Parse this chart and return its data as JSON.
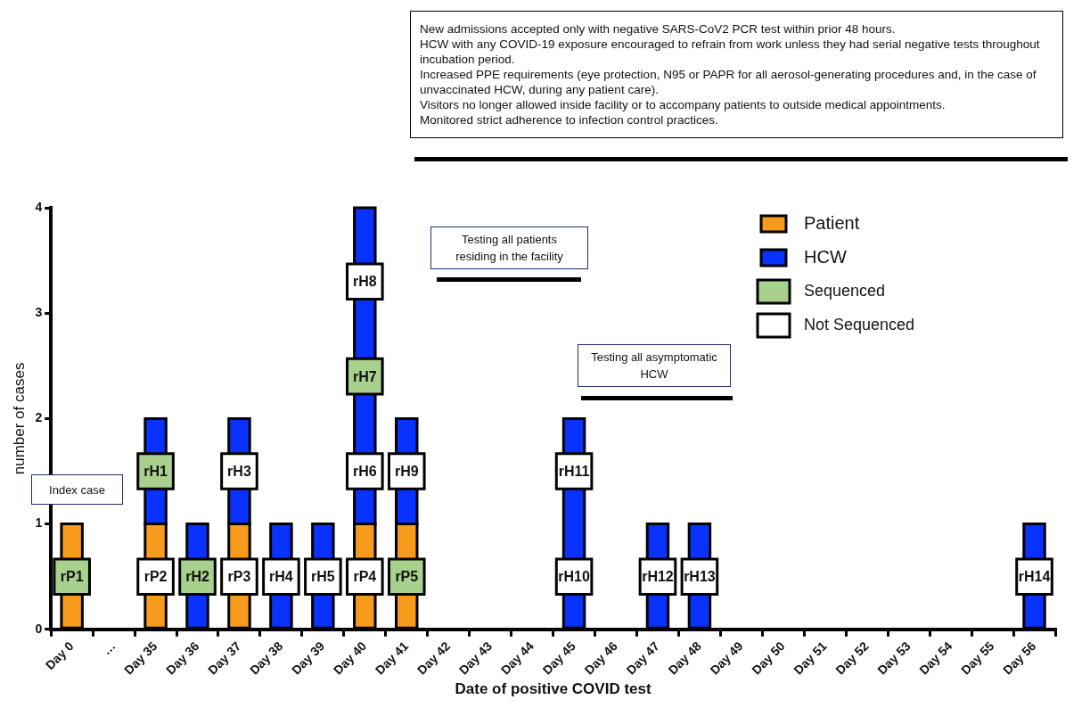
{
  "chart_data": {
    "type": "bar",
    "xlabel": "Date of positive COVID test",
    "ylabel": "number of cases",
    "categories": [
      "Day 0",
      "…",
      "Day 35",
      "Day 36",
      "Day 37",
      "Day 38",
      "Day 39",
      "Day 40",
      "Day 41",
      "Day 42",
      "Day 43",
      "Day 44",
      "Day 45",
      "Day 46",
      "Day 47",
      "Day 48",
      "Day 49",
      "Day 50",
      "Day 51",
      "Day 52",
      "Day 53",
      "Day 54",
      "Day 55",
      "Day 56"
    ],
    "stacked": true,
    "ylim": [
      0,
      4
    ],
    "yticks": [
      0,
      1,
      2,
      3,
      4
    ],
    "grid": false,
    "legend": "top right",
    "series": [
      {
        "name": "Patient",
        "color": "#f89a1c",
        "values": [
          1,
          0,
          1,
          0,
          1,
          0,
          0,
          1,
          1,
          0,
          0,
          0,
          0,
          0,
          0,
          0,
          0,
          0,
          0,
          0,
          0,
          0,
          0,
          0
        ]
      },
      {
        "name": "HCW",
        "color": "#0a32ff",
        "values": [
          0,
          0,
          1,
          1,
          1,
          1,
          1,
          3,
          1,
          0,
          0,
          0,
          2,
          0,
          1,
          1,
          0,
          0,
          0,
          0,
          0,
          0,
          0,
          1
        ]
      },
      {
        "name": "Sequenced",
        "type": "scatter",
        "marker": "square",
        "color": "#a9d18e",
        "x": [
          "Day 0",
          "Day 35",
          "Day 36",
          "Day 40",
          "Day 41"
        ],
        "values": [
          0.5,
          1.5,
          0.5,
          2.4,
          0.5
        ]
      },
      {
        "name": "Not Sequenced",
        "type": "scatter",
        "marker": "square",
        "color": "#ffffff",
        "x": [
          "Day 35",
          "Day 37",
          "Day 37",
          "Day 38",
          "Day 39",
          "Day 40",
          "Day 40",
          "Day 40",
          "Day 41",
          "Day 45",
          "Day 45",
          "Day 47",
          "Day 48",
          "Day 56"
        ],
        "values": [
          0.5,
          0.5,
          1.5,
          0.5,
          0.5,
          0.5,
          1.5,
          3.3,
          1.5,
          0.5,
          1.5,
          0.5,
          0.5,
          0.5
        ]
      }
    ],
    "annotations": [
      "New admissions accepted only with negative SARS-CoV2 PCR test within prior 48 hours.\nHCW with any COVID-19 exposure encouraged to refrain from work unless they had serial negative tests throughout incubation period.\nIncreased PPE requirements (eye protection, N95 or PAPR for all aerosol-generating procedures and, in the case of unvaccinated HCW, during any patient care).\nVisitors no longer allowed inside facility or to accompany patients to outside medical appointments.\nMonitored strict adherence to infection control practices.",
      "Index case",
      "Testing all patients residing in the facility",
      "Testing all asymptomatic HCW",
      {
        "text": "rP1",
        "x": "Day 0",
        "y": 0.5
      },
      {
        "text": "rH1",
        "x": "Day 35",
        "y": 1.5
      },
      {
        "text": "rP2",
        "x": "Day 35",
        "y": 0.5
      },
      {
        "text": "rH2",
        "x": "Day 36",
        "y": 0.5
      },
      {
        "text": "rP3",
        "x": "Day 37",
        "y": 0.5
      },
      {
        "text": "rH3",
        "x": "Day 37",
        "y": 1.5
      },
      {
        "text": "rH4",
        "x": "Day 38",
        "y": 0.5
      },
      {
        "text": "rH5",
        "x": "Day 39",
        "y": 0.5
      },
      {
        "text": "rP4",
        "x": "Day 40",
        "y": 0.5
      },
      {
        "text": "rH6",
        "x": "Day 40",
        "y": 1.5
      },
      {
        "text": "rH7",
        "x": "Day 40",
        "y": 2.4
      },
      {
        "text": "rH8",
        "x": "Day 40",
        "y": 3.3
      },
      {
        "text": "rP5",
        "x": "Day 41",
        "y": 0.5
      },
      {
        "text": "rH9",
        "x": "Day 41",
        "y": 1.5
      },
      {
        "text": "rH10",
        "x": "Day 45",
        "y": 0.5
      },
      {
        "text": "rH11",
        "x": "Day 45",
        "y": 1.5
      },
      {
        "text": "rH12",
        "x": "Day 47",
        "y": 0.5
      },
      {
        "text": "rH13",
        "x": "Day 48",
        "y": 0.5
      },
      {
        "text": "rH14",
        "x": "Day 56",
        "y": 0.5
      }
    ]
  }
}
